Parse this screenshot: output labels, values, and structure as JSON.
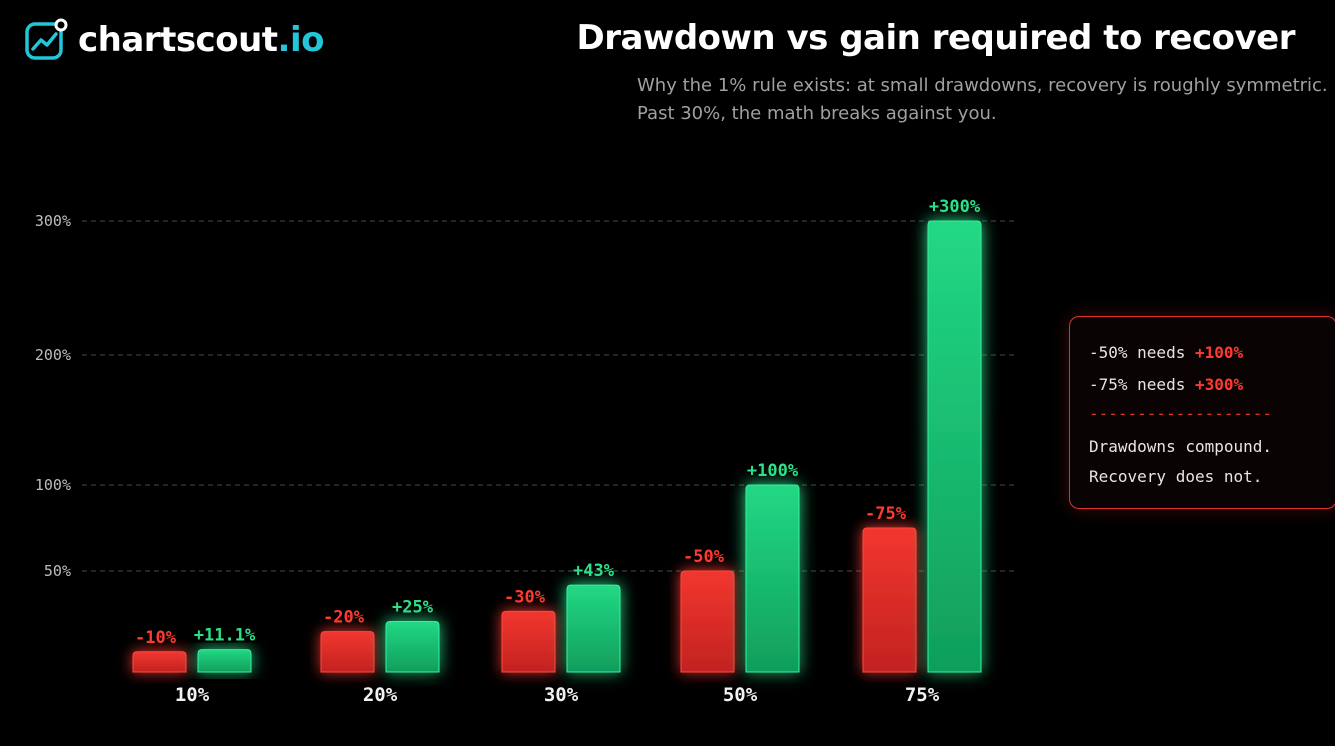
{
  "brand": {
    "name": "chartscout",
    "tld": ".io",
    "icon": "line-chart-logo-icon"
  },
  "header": {
    "title": "Drawdown vs gain required to recover",
    "subtitle_line1": "Why the 1% rule exists: at small drawdowns, recovery is roughly symmetric.",
    "subtitle_line2": "Past 30%, the math breaks against you."
  },
  "colors": {
    "background": "#000000",
    "drawdown": "#e8302a",
    "recovery": "#1fd37f",
    "drawdown_label": "#ff3b30",
    "recovery_label": "#2ee08a",
    "grid": "#4a4a4a",
    "brand_accent": "#22c6d8"
  },
  "callout": {
    "row1_prefix": "-50% needs",
    "row1_value": "+100%",
    "row2_prefix": "-75% needs",
    "row2_value": "+300%",
    "divider": "-------------------",
    "note_line1": "Drawdowns compound.",
    "note_line2": "Recovery does not."
  },
  "chart_data": {
    "type": "bar",
    "title": "Drawdown vs gain required to recover",
    "categories": [
      "10%",
      "20%",
      "30%",
      "50%",
      "75%"
    ],
    "series": [
      {
        "values": [
          -10,
          -20,
          -30,
          -50,
          -75
        ],
        "labels": [
          "-10%",
          "-20%",
          "-30%",
          "-50%",
          "-75%"
        ],
        "color": "#e8302a"
      },
      {
        "values": [
          11.1,
          25,
          43,
          100,
          300
        ],
        "labels": [
          "+11.1%",
          "+25%",
          "+43%",
          "+100%",
          "+300%"
        ],
        "color": "#1fd37f"
      }
    ],
    "y_ticks": [
      {
        "value": 50,
        "label": "50%"
      },
      {
        "value": 100,
        "label": "100%"
      },
      {
        "value": 200,
        "label": "200%"
      },
      {
        "value": 300,
        "label": "300%"
      }
    ],
    "ylim": [
      0,
      300
    ],
    "grid": true,
    "legend": "none"
  }
}
